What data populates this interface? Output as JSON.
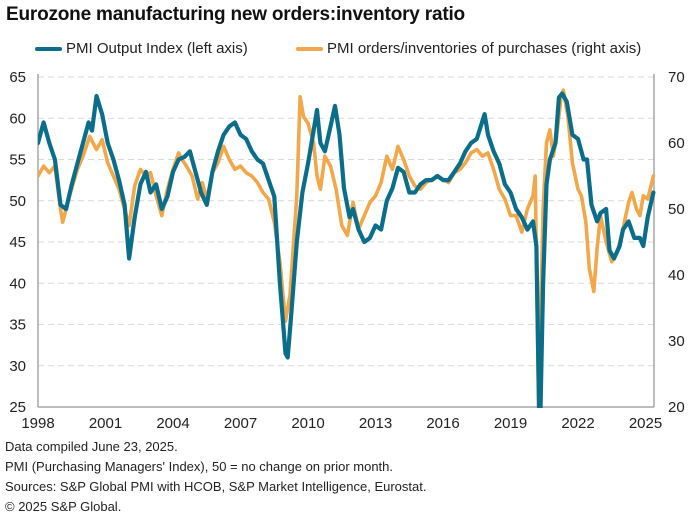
{
  "title": "Eurozone manufacturing new orders:inventory ratio",
  "colors": {
    "series1": "#0a6e8a",
    "series2": "#f2a74a",
    "grid": "#d9d9d9",
    "axis": "#a6a6a6"
  },
  "footer": {
    "line1": "Data compiled June 23, 2025.",
    "line2": "PMI (Purchasing Managers' Index), 50 = no change on prior month.",
    "line3": "Sources: S&P Global PMI with HCOB, S&P Market Intelligence, Eurostat.",
    "line4": "© 2025 S&P Global."
  },
  "chart_data": {
    "type": "line",
    "title": "Eurozone manufacturing new orders:inventory ratio",
    "xlabel": "",
    "ylabel": "",
    "xlim": [
      1998,
      2025.4
    ],
    "ylim_left": [
      25,
      65
    ],
    "ylim_right": [
      20,
      70
    ],
    "x_ticks": [
      "1998",
      "2001",
      "2004",
      "2007",
      "2010",
      "2013",
      "2016",
      "2019",
      "2022",
      "2025"
    ],
    "x_tick_values": [
      1998,
      2001,
      2004,
      2007,
      2010,
      2013,
      2016,
      2019,
      2022,
      2025
    ],
    "y_ticks_left": [
      25,
      30,
      35,
      40,
      45,
      50,
      55,
      60,
      65
    ],
    "y_ticks_right": [
      20,
      30,
      40,
      50,
      60,
      70
    ],
    "grid": true,
    "legend_position": "top",
    "series": [
      {
        "name": "PMI Output Index (left axis)",
        "axis": "left",
        "x": [
          1998.0,
          1998.25,
          1998.5,
          1998.75,
          1999.0,
          1999.25,
          1999.5,
          1999.75,
          2000.0,
          2000.25,
          2000.4,
          2000.6,
          2000.85,
          2001.1,
          2001.35,
          2001.6,
          2001.85,
          2002.05,
          2002.3,
          2002.55,
          2002.8,
          2003.0,
          2003.25,
          2003.5,
          2003.75,
          2004.0,
          2004.25,
          2004.5,
          2004.75,
          2005.0,
          2005.25,
          2005.5,
          2005.75,
          2006.0,
          2006.25,
          2006.5,
          2006.75,
          2007.0,
          2007.25,
          2007.5,
          2007.75,
          2008.0,
          2008.25,
          2008.5,
          2008.75,
          2009.0,
          2009.1,
          2009.25,
          2009.5,
          2009.75,
          2010.0,
          2010.25,
          2010.4,
          2010.55,
          2010.75,
          2011.0,
          2011.2,
          2011.4,
          2011.6,
          2011.85,
          2012.0,
          2012.25,
          2012.5,
          2012.75,
          2013.0,
          2013.25,
          2013.5,
          2013.75,
          2014.0,
          2014.25,
          2014.5,
          2014.75,
          2015.0,
          2015.25,
          2015.5,
          2015.75,
          2016.0,
          2016.25,
          2016.5,
          2016.75,
          2017.0,
          2017.25,
          2017.5,
          2017.85,
          2018.0,
          2018.25,
          2018.5,
          2018.75,
          2019.0,
          2019.25,
          2019.5,
          2019.75,
          2020.0,
          2020.15,
          2020.3,
          2020.45,
          2020.6,
          2020.75,
          2021.0,
          2021.15,
          2021.3,
          2021.5,
          2021.75,
          2022.0,
          2022.25,
          2022.4,
          2022.6,
          2022.85,
          2023.0,
          2023.25,
          2023.4,
          2023.6,
          2023.85,
          2024.0,
          2024.25,
          2024.5,
          2024.75,
          2024.9,
          2025.1,
          2025.35
        ],
        "values": [
          57,
          59.5,
          57,
          55,
          49.5,
          49,
          52,
          54.5,
          57,
          59.5,
          58.5,
          62.7,
          60.5,
          57,
          55,
          52.5,
          49.5,
          43,
          48,
          52,
          53.5,
          51,
          52,
          49,
          50.5,
          53.5,
          55,
          55.3,
          56,
          53.5,
          51,
          49.5,
          53.5,
          56,
          58,
          59,
          59.5,
          58,
          57.5,
          56,
          55,
          54.5,
          52.5,
          50.5,
          40,
          31.5,
          31,
          36,
          45,
          51,
          54.5,
          58.5,
          61,
          57,
          56,
          59,
          61.5,
          58,
          51.5,
          48,
          49,
          46.5,
          45,
          45.5,
          47,
          46.5,
          50,
          51.5,
          54,
          53.5,
          51,
          51,
          52,
          52.5,
          52.5,
          53,
          52.5,
          52.5,
          53.5,
          54.5,
          56,
          57,
          57.5,
          60.5,
          58,
          56,
          54.5,
          52,
          51,
          49,
          48,
          46.5,
          47.5,
          44.5,
          20,
          40,
          52,
          55,
          57,
          62.5,
          63,
          62,
          58,
          57.5,
          55,
          55,
          49.5,
          47.5,
          48.5,
          49,
          44,
          43,
          44.5,
          46.5,
          47.5,
          45.5,
          45.5,
          44.5,
          48,
          51
        ]
      },
      {
        "name": "PMI orders/inventories of purchases (right axis)",
        "axis": "right",
        "x": [
          1998.0,
          1998.25,
          1998.5,
          1998.75,
          1999.0,
          1999.1,
          1999.4,
          1999.75,
          2000.0,
          2000.3,
          2000.6,
          2000.85,
          2001.1,
          2001.35,
          2001.6,
          2001.85,
          2002.05,
          2002.3,
          2002.55,
          2002.8,
          2003.0,
          2003.25,
          2003.5,
          2003.75,
          2004.0,
          2004.25,
          2004.4,
          2004.6,
          2004.85,
          2005.1,
          2005.3,
          2005.5,
          2005.75,
          2006.0,
          2006.25,
          2006.5,
          2006.75,
          2007.0,
          2007.25,
          2007.5,
          2007.75,
          2008.0,
          2008.25,
          2008.5,
          2008.75,
          2009.0,
          2009.2,
          2009.5,
          2009.65,
          2009.8,
          2010.0,
          2010.25,
          2010.4,
          2010.55,
          2010.75,
          2011.0,
          2011.25,
          2011.5,
          2011.75,
          2012.0,
          2012.25,
          2012.5,
          2012.75,
          2013.0,
          2013.25,
          2013.5,
          2013.75,
          2014.0,
          2014.25,
          2014.5,
          2014.75,
          2015.0,
          2015.25,
          2015.5,
          2015.75,
          2016.0,
          2016.25,
          2016.5,
          2016.75,
          2017.0,
          2017.25,
          2017.5,
          2017.75,
          2018.0,
          2018.25,
          2018.5,
          2018.75,
          2019.0,
          2019.25,
          2019.5,
          2019.75,
          2020.0,
          2020.1,
          2020.25,
          2020.45,
          2020.6,
          2020.75,
          2020.9,
          2021.05,
          2021.25,
          2021.35,
          2021.55,
          2021.75,
          2022.0,
          2022.15,
          2022.35,
          2022.5,
          2022.7,
          2022.85,
          2023.0,
          2023.25,
          2023.5,
          2023.75,
          2024.0,
          2024.25,
          2024.4,
          2024.6,
          2024.75,
          2024.9,
          2025.1,
          2025.35
        ],
        "values": [
          55,
          56.5,
          55.5,
          56.5,
          50,
          48,
          52,
          56,
          58,
          61,
          59,
          60.5,
          57,
          55,
          53,
          50,
          47.5,
          53.5,
          56,
          55,
          55.5,
          52,
          49,
          53,
          56,
          58.5,
          57.5,
          56.5,
          55,
          51.5,
          54,
          51.5,
          55.5,
          57,
          59.5,
          57.5,
          56,
          56.5,
          55.5,
          55,
          54,
          52.5,
          51.5,
          48,
          42,
          33,
          37,
          52,
          67,
          64,
          63,
          60,
          55,
          53,
          58,
          56.5,
          53,
          47.5,
          46,
          51,
          47,
          49,
          51,
          52,
          54,
          58,
          56,
          59.5,
          57.5,
          55,
          53.5,
          53,
          54,
          54.5,
          55,
          54.5,
          54,
          55.5,
          56,
          57,
          58.5,
          59,
          58,
          58.5,
          56,
          53,
          51.5,
          49,
          49,
          46.5,
          50,
          52,
          55,
          20,
          50,
          60,
          62,
          58,
          61,
          67,
          68,
          64,
          57,
          53,
          52,
          48,
          41,
          37.5,
          44,
          49,
          45,
          42,
          43.5,
          47,
          51,
          52.5,
          50,
          49,
          52,
          51.5,
          55
        ]
      }
    ]
  }
}
